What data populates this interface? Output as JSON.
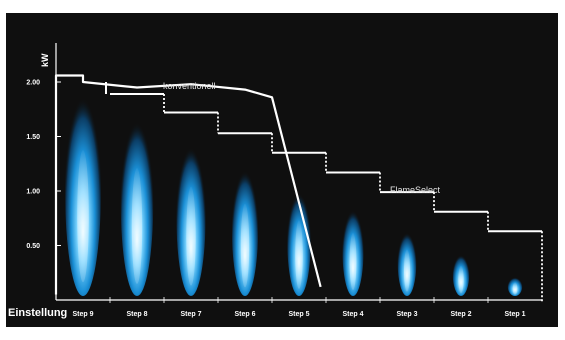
{
  "chart_data": {
    "type": "line",
    "ylabel": "kW",
    "xlabel": "Einstellung",
    "y_ticks": [
      "0.50",
      "1.00",
      "1.50",
      "2.00"
    ],
    "ylim": [
      0,
      2.45
    ],
    "categories": [
      "Step 9",
      "Step 8",
      "Step 7",
      "Step 6",
      "Step 5",
      "Step 4",
      "Step 3",
      "Step 2",
      "Step 1"
    ],
    "series": [
      {
        "name": "konventionell",
        "points": [
          [
            9.5,
            2.06
          ],
          [
            9.0,
            2.06
          ],
          [
            9.0,
            2.0
          ],
          [
            8.0,
            1.95
          ],
          [
            7.0,
            1.98
          ],
          [
            6.0,
            1.93
          ],
          [
            5.5,
            1.86
          ],
          [
            4.6,
            0.12
          ]
        ]
      },
      {
        "name": "FlameSelect",
        "values": [
          1.89,
          1.72,
          1.53,
          1.35,
          1.17,
          0.99,
          0.81,
          0.63,
          0.63
        ]
      }
    ],
    "flames": [
      1.99,
      1.75,
      1.5,
      1.27,
      1.05,
      0.88,
      0.66,
      0.44,
      0.22
    ],
    "annotations": [
      "konventionell",
      "FlameSelect"
    ],
    "background": "#0f0f0f",
    "line_color": "#ffffff",
    "flame_color": "#1e9ee6"
  }
}
